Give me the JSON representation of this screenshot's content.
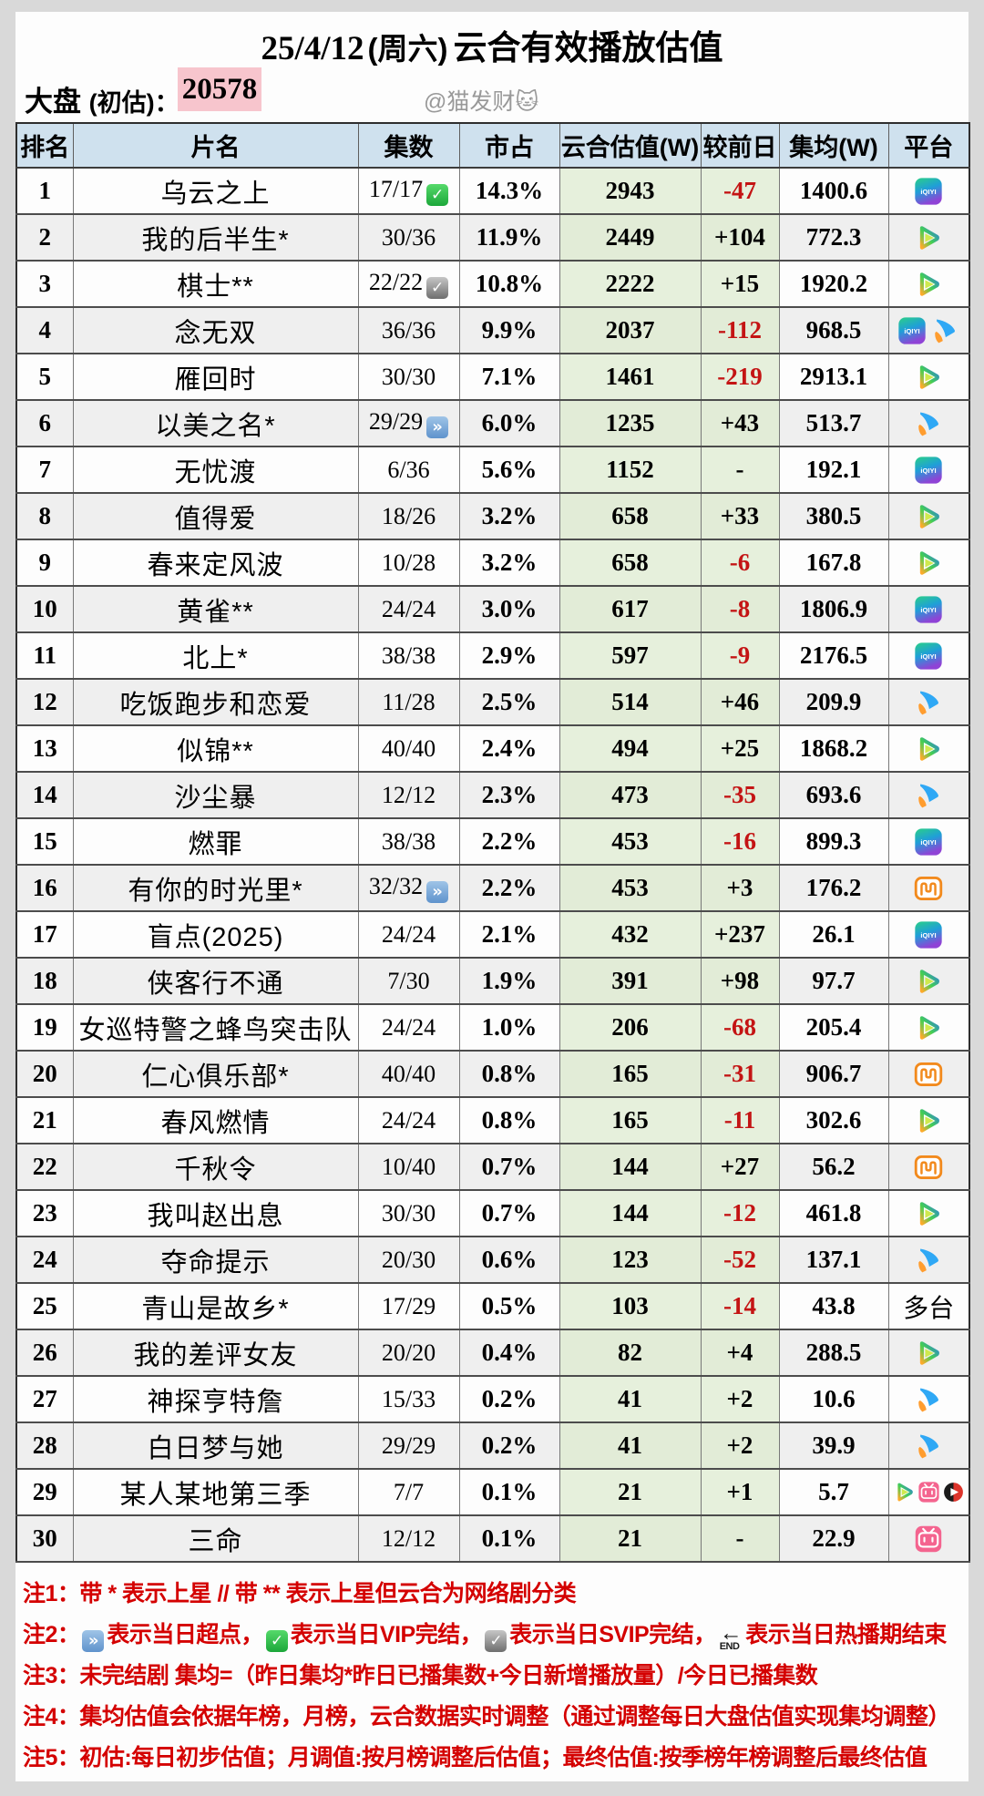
{
  "page": {
    "title_date": "25/4/12",
    "title_week": "(周六)",
    "title_main": "云合有效播放估值",
    "market_label": "大盘",
    "market_paren": "(初估)：",
    "market_value": "20578",
    "credit": "@猫发财🐱"
  },
  "table": {
    "columns": [
      "排名",
      "片名",
      "集数",
      "市占",
      "云合估值(W)",
      "较前日",
      "集均(W)",
      "平台"
    ],
    "rows": [
      {
        "rank": "1",
        "title": "乌云之上",
        "episodes": "17/17",
        "badge": "vip",
        "share": "14.3%",
        "estimate": "2943",
        "delta": "-47",
        "avg": "1400.6",
        "platforms": [
          "iqiyi"
        ]
      },
      {
        "rank": "2",
        "title": "我的后半生*",
        "episodes": "30/36",
        "badge": "",
        "share": "11.9%",
        "estimate": "2449",
        "delta": "+104",
        "avg": "772.3",
        "platforms": [
          "tencent"
        ]
      },
      {
        "rank": "3",
        "title": "棋士**",
        "episodes": "22/22",
        "badge": "svip",
        "share": "10.8%",
        "estimate": "2222",
        "delta": "+15",
        "avg": "1920.2",
        "platforms": [
          "tencent"
        ]
      },
      {
        "rank": "4",
        "title": "念无双",
        "episodes": "36/36",
        "badge": "",
        "share": "9.9%",
        "estimate": "2037",
        "delta": "-112",
        "avg": "968.5",
        "platforms": [
          "iqiyi",
          "youku"
        ]
      },
      {
        "rank": "5",
        "title": "雁回时",
        "episodes": "30/30",
        "badge": "",
        "share": "7.1%",
        "estimate": "1461",
        "delta": "-219",
        "avg": "2913.1",
        "platforms": [
          "tencent"
        ]
      },
      {
        "rank": "6",
        "title": "以美之名*",
        "episodes": "29/29",
        "badge": "ff",
        "share": "6.0%",
        "estimate": "1235",
        "delta": "+43",
        "avg": "513.7",
        "platforms": [
          "youku"
        ]
      },
      {
        "rank": "7",
        "title": "无忧渡",
        "episodes": "6/36",
        "badge": "",
        "share": "5.6%",
        "estimate": "1152",
        "delta": "-",
        "avg": "192.1",
        "platforms": [
          "iqiyi"
        ]
      },
      {
        "rank": "8",
        "title": "值得爱",
        "episodes": "18/26",
        "badge": "",
        "share": "3.2%",
        "estimate": "658",
        "delta": "+33",
        "avg": "380.5",
        "platforms": [
          "tencent"
        ]
      },
      {
        "rank": "9",
        "title": "春来定风波",
        "episodes": "10/28",
        "badge": "",
        "share": "3.2%",
        "estimate": "658",
        "delta": "-6",
        "avg": "167.8",
        "platforms": [
          "tencent"
        ]
      },
      {
        "rank": "10",
        "title": "黄雀**",
        "episodes": "24/24",
        "badge": "",
        "share": "3.0%",
        "estimate": "617",
        "delta": "-8",
        "avg": "1806.9",
        "platforms": [
          "iqiyi"
        ]
      },
      {
        "rank": "11",
        "title": "北上*",
        "episodes": "38/38",
        "badge": "",
        "share": "2.9%",
        "estimate": "597",
        "delta": "-9",
        "avg": "2176.5",
        "platforms": [
          "iqiyi"
        ]
      },
      {
        "rank": "12",
        "title": "吃饭跑步和恋爱",
        "episodes": "11/28",
        "badge": "",
        "share": "2.5%",
        "estimate": "514",
        "delta": "+46",
        "avg": "209.9",
        "platforms": [
          "youku"
        ]
      },
      {
        "rank": "13",
        "title": "似锦**",
        "episodes": "40/40",
        "badge": "",
        "share": "2.4%",
        "estimate": "494",
        "delta": "+25",
        "avg": "1868.2",
        "platforms": [
          "tencent"
        ]
      },
      {
        "rank": "14",
        "title": "沙尘暴",
        "episodes": "12/12",
        "badge": "",
        "share": "2.3%",
        "estimate": "473",
        "delta": "-35",
        "avg": "693.6",
        "platforms": [
          "youku"
        ]
      },
      {
        "rank": "15",
        "title": "燃罪",
        "episodes": "38/38",
        "badge": "",
        "share": "2.2%",
        "estimate": "453",
        "delta": "-16",
        "avg": "899.3",
        "platforms": [
          "iqiyi"
        ]
      },
      {
        "rank": "16",
        "title": "有你的时光里*",
        "episodes": "32/32",
        "badge": "ff",
        "share": "2.2%",
        "estimate": "453",
        "delta": "+3",
        "avg": "176.2",
        "platforms": [
          "mango"
        ]
      },
      {
        "rank": "17",
        "title": "盲点(2025)",
        "episodes": "24/24",
        "badge": "",
        "share": "2.1%",
        "estimate": "432",
        "delta": "+237",
        "avg": "26.1",
        "platforms": [
          "iqiyi"
        ]
      },
      {
        "rank": "18",
        "title": "侠客行不通",
        "episodes": "7/30",
        "badge": "",
        "share": "1.9%",
        "estimate": "391",
        "delta": "+98",
        "avg": "97.7",
        "platforms": [
          "tencent"
        ]
      },
      {
        "rank": "19",
        "title": "女巡特警之蜂鸟突击队",
        "episodes": "24/24",
        "badge": "",
        "share": "1.0%",
        "estimate": "206",
        "delta": "-68",
        "avg": "205.4",
        "platforms": [
          "tencent"
        ]
      },
      {
        "rank": "20",
        "title": "仁心俱乐部*",
        "episodes": "40/40",
        "badge": "",
        "share": "0.8%",
        "estimate": "165",
        "delta": "-31",
        "avg": "906.7",
        "platforms": [
          "mango"
        ]
      },
      {
        "rank": "21",
        "title": "春风燃情",
        "episodes": "24/24",
        "badge": "",
        "share": "0.8%",
        "estimate": "165",
        "delta": "-11",
        "avg": "302.6",
        "platforms": [
          "tencent"
        ]
      },
      {
        "rank": "22",
        "title": "千秋令",
        "episodes": "10/40",
        "badge": "",
        "share": "0.7%",
        "estimate": "144",
        "delta": "+27",
        "avg": "56.2",
        "platforms": [
          "mango"
        ]
      },
      {
        "rank": "23",
        "title": "我叫赵出息",
        "episodes": "30/30",
        "badge": "",
        "share": "0.7%",
        "estimate": "144",
        "delta": "-12",
        "avg": "461.8",
        "platforms": [
          "tencent"
        ]
      },
      {
        "rank": "24",
        "title": "夺命提示",
        "episodes": "20/30",
        "badge": "",
        "share": "0.6%",
        "estimate": "123",
        "delta": "-52",
        "avg": "137.1",
        "platforms": [
          "youku"
        ]
      },
      {
        "rank": "25",
        "title": "青山是故乡*",
        "episodes": "17/29",
        "badge": "",
        "share": "0.5%",
        "estimate": "103",
        "delta": "-14",
        "avg": "43.8",
        "platforms": [],
        "platform_text": "多台"
      },
      {
        "rank": "26",
        "title": "我的差评女友",
        "episodes": "20/20",
        "badge": "",
        "share": "0.4%",
        "estimate": "82",
        "delta": "+4",
        "avg": "288.5",
        "platforms": [
          "tencent"
        ]
      },
      {
        "rank": "27",
        "title": "神探亨特詹",
        "episodes": "15/33",
        "badge": "",
        "share": "0.2%",
        "estimate": "41",
        "delta": "+2",
        "avg": "10.6",
        "platforms": [
          "youku"
        ]
      },
      {
        "rank": "28",
        "title": "白日梦与她",
        "episodes": "29/29",
        "badge": "",
        "share": "0.2%",
        "estimate": "41",
        "delta": "+2",
        "avg": "39.9",
        "platforms": [
          "youku"
        ]
      },
      {
        "rank": "29",
        "title": "某人某地第三季",
        "episodes": "7/7",
        "badge": "",
        "share": "0.1%",
        "estimate": "21",
        "delta": "+1",
        "avg": "5.7",
        "platforms": [
          "tencent",
          "bilibili",
          "redcircle"
        ]
      },
      {
        "rank": "30",
        "title": "三命",
        "episodes": "12/12",
        "badge": "",
        "share": "0.1%",
        "estimate": "21",
        "delta": "-",
        "avg": "22.9",
        "platforms": [
          "bilibili"
        ]
      }
    ]
  },
  "notes": [
    {
      "label": "注1：",
      "segments": [
        {
          "text": "带 * 表示上星 // 带 ** 表示上星但云合为网络剧分类"
        }
      ]
    },
    {
      "label": "注2：",
      "segments": [
        {
          "icon": "ff"
        },
        {
          "text": "表示当日超点，"
        },
        {
          "icon": "vip"
        },
        {
          "text": "表示当日VIP完结，"
        },
        {
          "icon": "svip"
        },
        {
          "text": "表示当日SVIP完结，"
        },
        {
          "icon": "end"
        },
        {
          "text": "表示当日热播期结束"
        }
      ]
    },
    {
      "label": "注3：",
      "segments": [
        {
          "text": "未完结剧 集均=（昨日集均*昨日已播集数+今日新增播放量）/今日已播集数"
        }
      ]
    },
    {
      "label": "注4：",
      "segments": [
        {
          "text": "集均估值会依据年榜，月榜，云合数据实时调整（通过调整每日大盘估值实现集均调整）"
        }
      ]
    },
    {
      "label": "注5：",
      "segments": [
        {
          "text": "初估:每日初步估值；月调值:按月榜调整后估值；最终估值:按季榜年榜调整后最终估值"
        }
      ]
    }
  ],
  "colors": {
    "header_bg": "#cfe1ee",
    "green_column": "#e6f0dc",
    "alt_row": "#efefef",
    "negative_red": "#c41414",
    "note_red": "#d40000",
    "highlight_pink": "#f7c5cd"
  }
}
